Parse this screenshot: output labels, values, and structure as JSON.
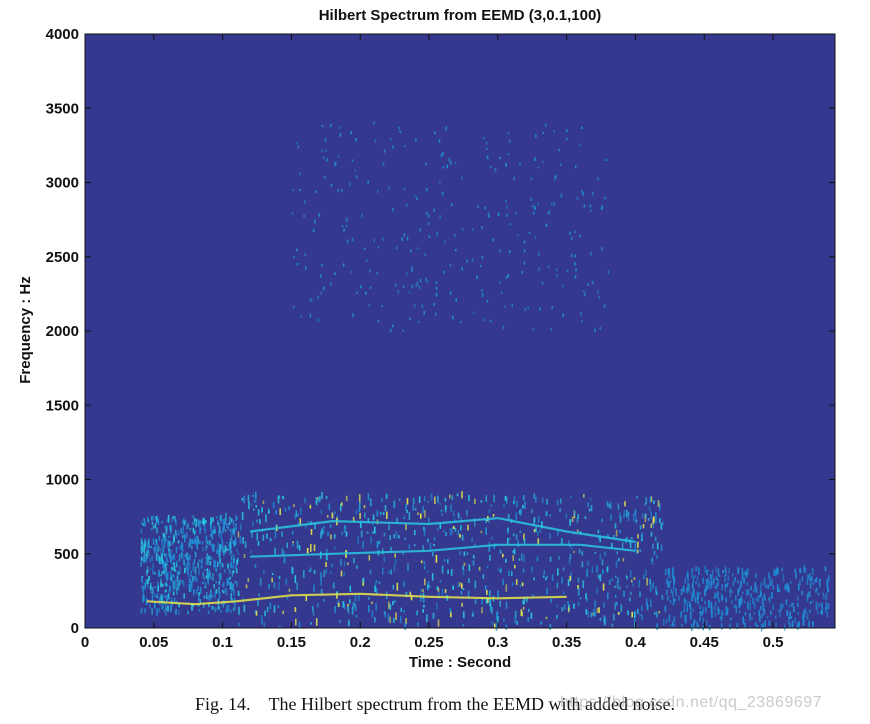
{
  "chart_data": {
    "type": "heatmap",
    "title": "Hilbert Spectrum from EEMD (3,0.1,100)",
    "xlabel": "Time : Second",
    "ylabel": "Frequency : Hz",
    "xlim": [
      0,
      0.545
    ],
    "ylim": [
      0,
      4000
    ],
    "x_ticks": [
      0,
      0.05,
      0.1,
      0.15,
      0.2,
      0.25,
      0.3,
      0.35,
      0.4,
      0.45,
      0.5
    ],
    "x_tick_labels": [
      "0",
      "0.05",
      "0.1",
      "0.15",
      "0.2",
      "0.25",
      "0.3",
      "0.35",
      "0.4",
      "0.45",
      "0.5"
    ],
    "y_ticks": [
      0,
      500,
      1000,
      1500,
      2000,
      2500,
      3000,
      3500,
      4000
    ],
    "y_tick_labels": [
      "0",
      "500",
      "1000",
      "1500",
      "2000",
      "2500",
      "3000",
      "3500",
      "4000"
    ],
    "colormap": {
      "background": "#35388f",
      "low": "#1f8fd6",
      "mid": "#28c7df",
      "high": "#e6e64a"
    },
    "energy_regions": [
      {
        "t_start": 0.11,
        "t_end": 0.42,
        "f_low": 0,
        "f_high": 900,
        "intensity": 0.75
      },
      {
        "t_start": 0.04,
        "t_end": 0.11,
        "f_low": 100,
        "f_high": 750,
        "intensity": 0.5
      },
      {
        "t_start": 0.42,
        "t_end": 0.54,
        "f_low": 0,
        "f_high": 400,
        "intensity": 0.3
      },
      {
        "t_start": 0.15,
        "t_end": 0.38,
        "f_low": 2000,
        "f_high": 3400,
        "intensity": 0.2
      }
    ],
    "ridges": [
      {
        "name": "",
        "t": [
          0.045,
          0.08,
          0.11,
          0.15,
          0.2,
          0.25,
          0.3,
          0.35
        ],
        "f": [
          180,
          160,
          180,
          220,
          230,
          210,
          200,
          210
        ]
      },
      {
        "name": "",
        "t": [
          0.12,
          0.18,
          0.25,
          0.3,
          0.36,
          0.4
        ],
        "f": [
          480,
          500,
          520,
          560,
          560,
          520
        ]
      },
      {
        "name": "",
        "t": [
          0.12,
          0.18,
          0.25,
          0.3,
          0.35,
          0.4
        ],
        "f": [
          650,
          720,
          700,
          740,
          650,
          580
        ]
      }
    ]
  },
  "caption": {
    "label": "Fig. 14.",
    "text": "The Hilbert spectrum from the EEMD with added noise."
  },
  "watermark": "https://blog.csdn.net/qq_23869697"
}
